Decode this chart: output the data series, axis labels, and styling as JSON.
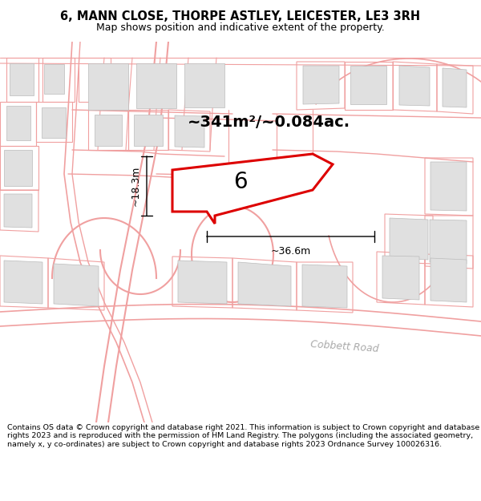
{
  "title_line1": "6, MANN CLOSE, THORPE ASTLEY, LEICESTER, LE3 3RH",
  "title_line2": "Map shows position and indicative extent of the property.",
  "footer_text": "Contains OS data © Crown copyright and database right 2021. This information is subject to Crown copyright and database rights 2023 and is reproduced with the permission of HM Land Registry. The polygons (including the associated geometry, namely x, y co-ordinates) are subject to Crown copyright and database rights 2023 Ordnance Survey 100026316.",
  "area_label": "~341m²/~0.084ac.",
  "width_label": "~36.6m",
  "height_label": "~18.3m",
  "plot_number": "6",
  "background_color": "#ffffff",
  "map_bg_color": "#ffffff",
  "road_color": "#f0a0a0",
  "building_color": "#e0e0e0",
  "building_edge": "#bbbbbb",
  "plot_color": "#dd0000",
  "road_label": "Cobbett Road",
  "fig_width": 6.0,
  "fig_height": 6.25,
  "title_fontsize": 10.5,
  "subtitle_fontsize": 9.0,
  "footer_fontsize": 6.8,
  "area_fontsize": 14,
  "dim_fontsize": 9,
  "plot_num_fontsize": 20,
  "road_label_fontsize": 9
}
